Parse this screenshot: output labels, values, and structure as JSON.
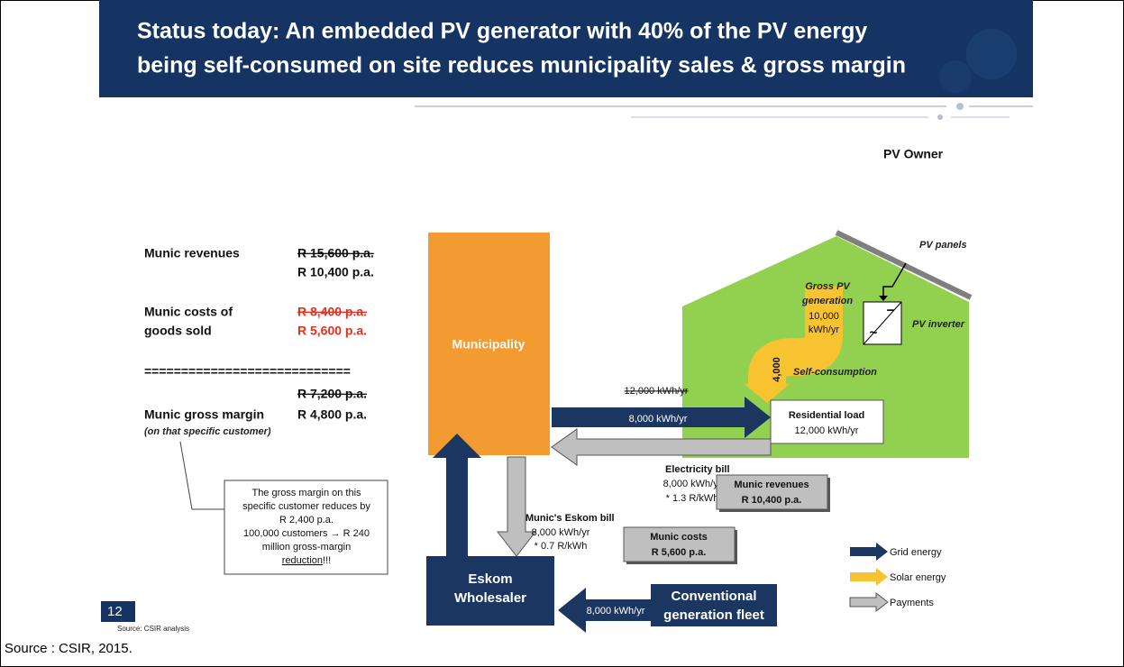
{
  "title": {
    "lines": [
      "Status today: An embedded PV generator with 40% of the PV energy",
      "being self-consumed on site reduces municipality sales & gross margin"
    ]
  },
  "owner_label": "PV Owner",
  "summary": {
    "revenues": {
      "label": "Munic revenues",
      "old": "R 15,600 p.a.",
      "new": "R 10,400 p.a."
    },
    "costs": {
      "label_lines": [
        "Munic costs of",
        "goods sold"
      ],
      "old": "R 8,400 p.a.",
      "new": "R 5,600 p.a."
    },
    "separator": "============================",
    "margin": {
      "label": "Munic gross margin",
      "note": "(on that specific customer)",
      "old": "R 7,200 p.a.",
      "new": "R 4,800 p.a."
    }
  },
  "callout": {
    "lines": [
      "The gross margin on this",
      "specific customer reduces by",
      "R 2,400 p.a.",
      "100,000 customers → R 240",
      "million gross-margin"
    ],
    "emphasis": "reduction",
    "tail": "!!!"
  },
  "nodes": {
    "municipality": "Municipality",
    "residential": [
      "Residential load",
      "12,000 kWh/yr"
    ],
    "eskom": [
      "Eskom",
      "Wholesaler"
    ],
    "conventional": [
      "Conventional",
      "generation fleet"
    ],
    "pv_panels": "PV panels",
    "pv_inverter": "PV inverter",
    "inverter_symbols": [
      "−",
      "~"
    ]
  },
  "flows": {
    "gross_pv": {
      "label_lines": [
        "Gross PV",
        "generation"
      ],
      "value_lines": [
        "10,000",
        "kWh/yr"
      ]
    },
    "self_consumption": {
      "label": "Self-consumption",
      "value": "4,000"
    },
    "grid_to_load": {
      "old": "12,000 kWh/yr",
      "new": "8,000 kWh/yr"
    },
    "electricity_bill": [
      "Electricity bill",
      "8,000 kWh/yr",
      "* 1.3 R/kWh"
    ],
    "eskom_bill": [
      "Munic's Eskom bill",
      "8,000 kWh/yr",
      "* 0.7 R/kWh"
    ],
    "fleet_to_eskom": "8,000 kWh/yr"
  },
  "boxes": {
    "munic_revenues": [
      "Munic revenues",
      "R 10,400 p.a."
    ],
    "munic_costs": [
      "Munic costs",
      "R 5,600 p.a."
    ]
  },
  "legend": [
    "Grid energy",
    "Solar energy",
    "Payments"
  ],
  "slide_number": "12",
  "slide_source": "Source: CSIR analysis",
  "caption": "Source : CSIR, 2015."
}
